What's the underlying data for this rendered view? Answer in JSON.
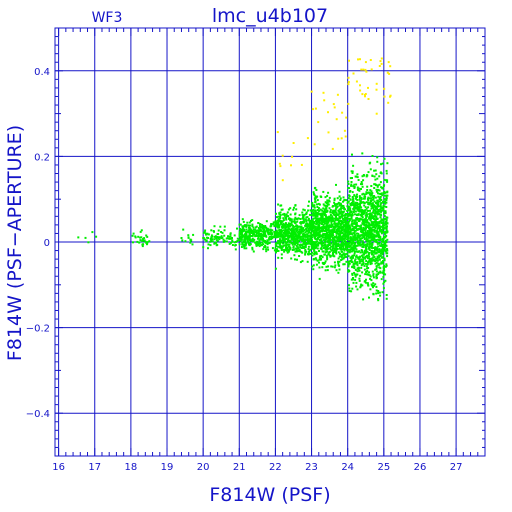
{
  "chart_data": {
    "type": "scatter",
    "title": "lmc_u4b107",
    "subtitle": "WF3",
    "xlabel": "F814W (PSF)",
    "ylabel": "F814W (PSF−APERTURE)",
    "xlim": [
      15.9,
      27.8
    ],
    "ylim": [
      -0.5,
      0.5
    ],
    "x_ticks": [
      16,
      17,
      18,
      19,
      20,
      21,
      22,
      23,
      24,
      25,
      26,
      27
    ],
    "x_tick_labels": [
      "16",
      "17",
      "18",
      "19",
      "20",
      "21",
      "22",
      "23",
      "24",
      "25",
      "26",
      "27"
    ],
    "y_ticks": [
      -0.4,
      -0.2,
      0,
      0.2,
      0.4
    ],
    "y_tick_labels": [
      "−0.4",
      "−0.2",
      "0",
      "0.2",
      "0.4"
    ],
    "grid": true,
    "legend": "none",
    "colors": {
      "axes": "#1515c8",
      "grid": "#1515c8",
      "series_main": "#00ee00",
      "series_flagged": "#ffee00"
    },
    "series": [
      {
        "color": "#00ee00",
        "clusters": [
          {
            "x_range": [
              16.4,
              17.4
            ],
            "y_center": 0.01,
            "y_spread": 0.02,
            "count": 5
          },
          {
            "x_range": [
              18.0,
              18.6
            ],
            "y_center": 0.005,
            "y_spread": 0.015,
            "count": 30
          },
          {
            "x_range": [
              19.4,
              19.8
            ],
            "y_center": 0.005,
            "y_spread": 0.015,
            "count": 14
          },
          {
            "x_range": [
              20.0,
              21.0
            ],
            "y_center": 0.01,
            "y_spread": 0.02,
            "count": 90
          },
          {
            "x_range": [
              21.0,
              22.0
            ],
            "y_center": 0.015,
            "y_spread": 0.03,
            "count": 350
          },
          {
            "x_range": [
              22.0,
              23.0
            ],
            "y_center": 0.02,
            "y_spread": 0.05,
            "count": 650
          },
          {
            "x_range": [
              23.0,
              24.0
            ],
            "y_center": 0.025,
            "y_spread": 0.07,
            "count": 1050
          },
          {
            "x_range": [
              24.0,
              25.1
            ],
            "y_center": 0.03,
            "y_spread": 0.12,
            "count": 1300
          }
        ]
      },
      {
        "color": "#ffee00",
        "clusters": [
          {
            "x_range": [
              22.0,
              23.0
            ],
            "y_center": 0.2,
            "y_spread": 0.05,
            "count": 10
          },
          {
            "x_range": [
              23.0,
              24.0
            ],
            "y_center": 0.3,
            "y_spread": 0.08,
            "count": 20
          },
          {
            "x_range": [
              24.0,
              25.2
            ],
            "y_center": 0.38,
            "y_spread": 0.07,
            "count": 40
          }
        ]
      }
    ]
  }
}
